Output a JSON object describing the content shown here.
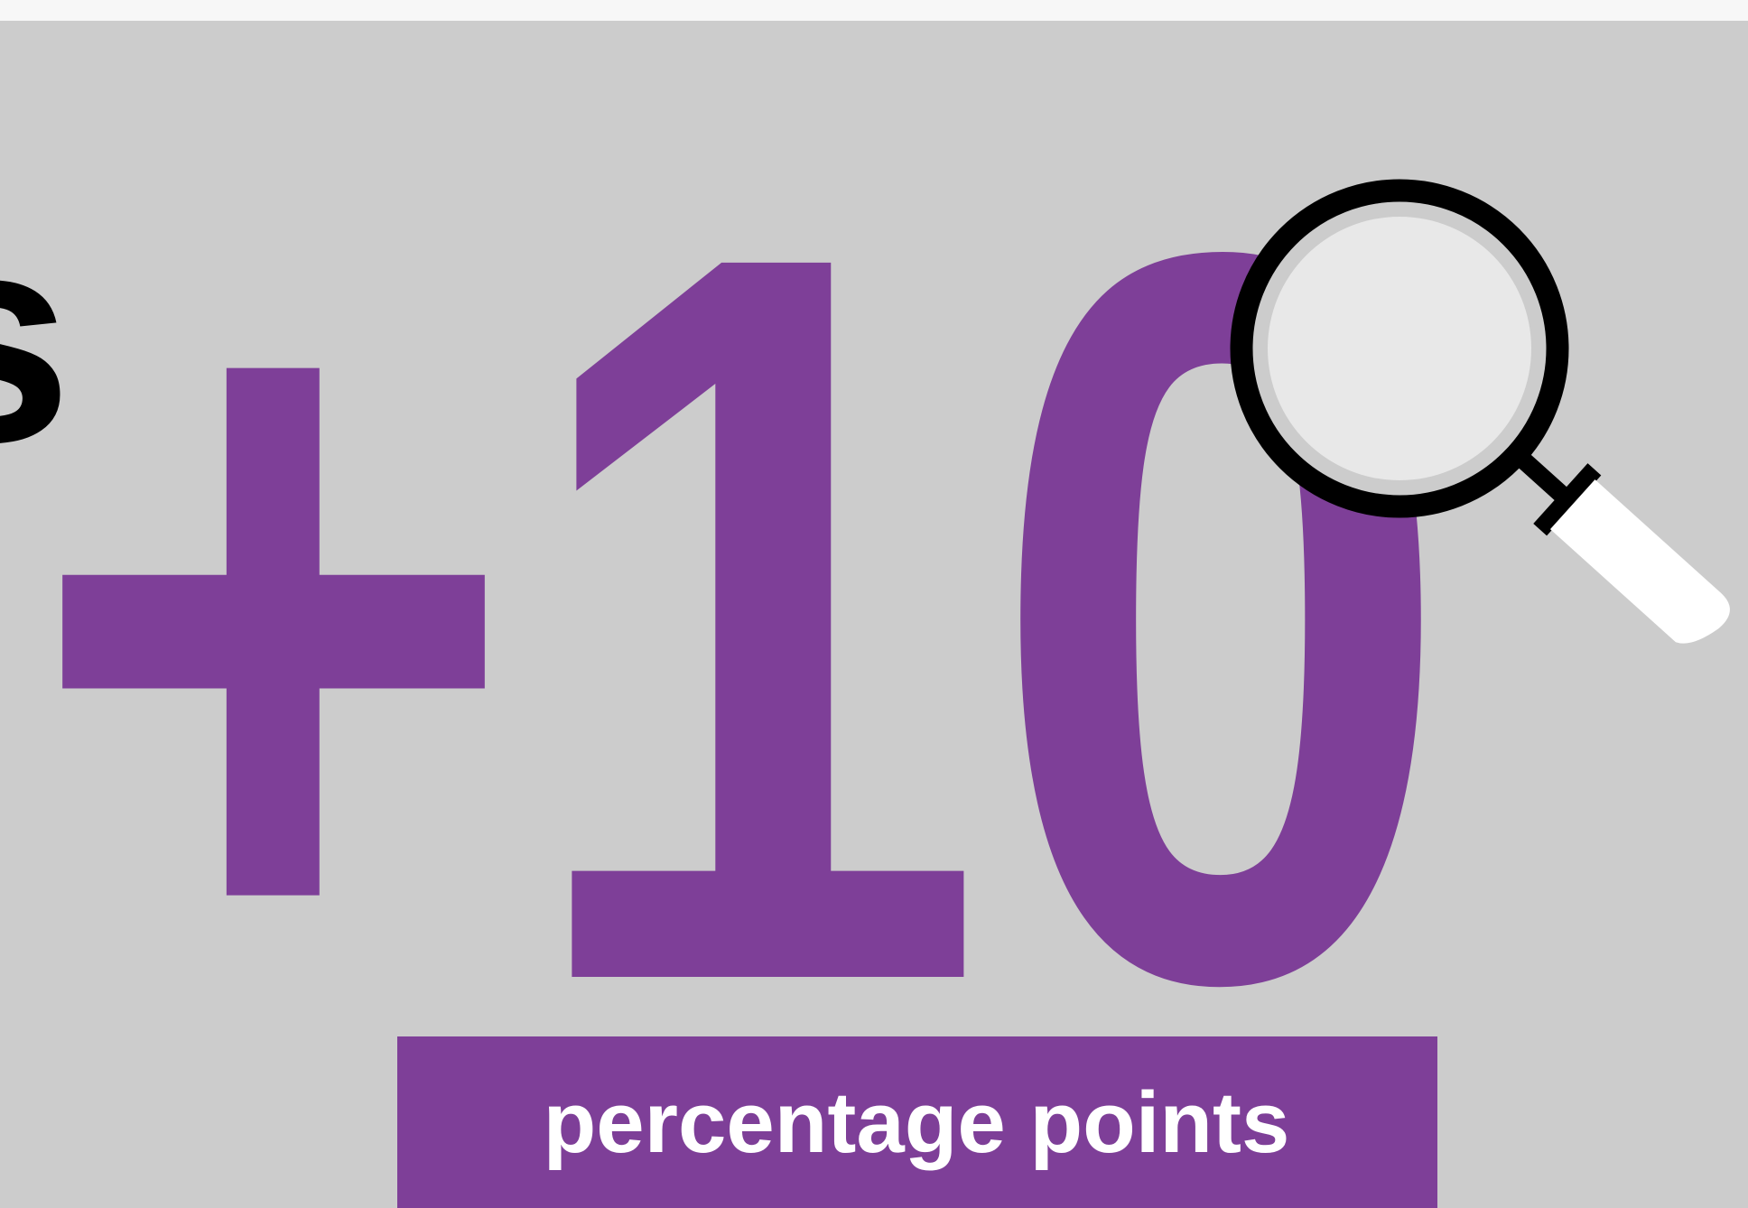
{
  "partial_text": "s",
  "headline": "+10",
  "label": "percentage points"
}
